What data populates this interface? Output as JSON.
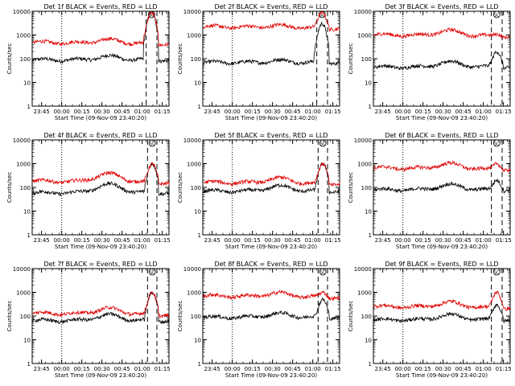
{
  "chart_data": {
    "type": "line",
    "log_y": true,
    "ylim": [
      1,
      10000
    ],
    "y_ticks": [
      1,
      10,
      100,
      1000,
      10000
    ],
    "y_tick_labels": [
      "1",
      "10",
      "100",
      "1000",
      "10000"
    ],
    "ylabel": "Counts/sec",
    "xlabel": "Start Time (09-Nov-09 23:40:20)",
    "x_range_minutes": [
      -2,
      100
    ],
    "x_ticks_minutes": [
      5,
      20,
      35,
      50,
      65,
      80,
      95
    ],
    "x_tick_labels": [
      "23:45",
      "00:00",
      "00:15",
      "00:30",
      "00:45",
      "01:00",
      "01:15"
    ],
    "marker_label": "SC",
    "series": [
      {
        "name": "Events",
        "color": "#000000"
      },
      {
        "name": "LLD",
        "color": "#e00000"
      }
    ],
    "panels": [
      {
        "title": "Det 1f BLACK = Events, RED = LLD",
        "events_base": 90,
        "lld_base": 480,
        "events_peak": 9000,
        "lld_peak": 9000,
        "dashed_lines_minutes": [
          83,
          91
        ],
        "dotted_line_minutes": 20,
        "hump_factor": 1.4
      },
      {
        "title": "Det 2f BLACK = Events, RED = LLD",
        "events_base": 70,
        "lld_base": 2200,
        "events_peak": 3000,
        "lld_peak": 9000,
        "dashed_lines_minutes": [
          83,
          91
        ],
        "dotted_line_minutes": 20,
        "hump_factor": 1.2
      },
      {
        "title": "Det 3f BLACK = Events, RED = LLD",
        "events_base": 45,
        "lld_base": 1000,
        "events_peak": 200,
        "lld_peak": 1100,
        "dashed_lines_minutes": [
          86,
          94
        ],
        "dotted_line_minutes": 20,
        "hump_factor": 1.6
      },
      {
        "title": "Det 4f BLACK = Events, RED = LLD",
        "events_base": 60,
        "lld_base": 180,
        "events_peak": 1000,
        "lld_peak": 1000,
        "dashed_lines_minutes": [
          84,
          91
        ],
        "dotted_line_minutes": 20,
        "hump_factor": 2.2
      },
      {
        "title": "Det 5f BLACK = Events, RED = LLD",
        "events_base": 70,
        "lld_base": 160,
        "events_peak": 1000,
        "lld_peak": 1000,
        "dashed_lines_minutes": [
          84,
          91
        ],
        "dotted_line_minutes": 20,
        "hump_factor": 1.6
      },
      {
        "title": "Det 6f BLACK = Events, RED = LLD",
        "events_base": 80,
        "lld_base": 650,
        "events_peak": 200,
        "lld_peak": 1000,
        "dashed_lines_minutes": [
          86,
          94
        ],
        "dotted_line_minutes": 20,
        "hump_factor": 1.6
      },
      {
        "title": "Det 7f BLACK = Events, RED = LLD",
        "events_base": 65,
        "lld_base": 130,
        "events_peak": 1000,
        "lld_peak": 1000,
        "dashed_lines_minutes": [
          84,
          91
        ],
        "dotted_line_minutes": 20,
        "hump_factor": 1.7
      },
      {
        "title": "Det 8f BLACK = Events, RED = LLD",
        "events_base": 90,
        "lld_base": 700,
        "events_peak": 500,
        "lld_peak": 1000,
        "dashed_lines_minutes": [
          84,
          91
        ],
        "dotted_line_minutes": 20,
        "hump_factor": 1.4
      },
      {
        "title": "Det 9f BLACK = Events, RED = LLD",
        "events_base": 70,
        "lld_base": 250,
        "events_peak": 300,
        "lld_peak": 1000,
        "dashed_lines_minutes": [
          86,
          94
        ],
        "dotted_line_minutes": 20,
        "hump_factor": 1.6
      }
    ]
  }
}
